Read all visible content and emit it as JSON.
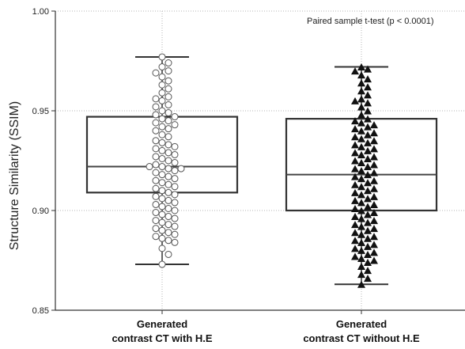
{
  "chart_data": {
    "type": "box",
    "annotation": "Paired sample t-test (p < 0.0001)",
    "ylabel": "Structure Similarity (SSIM)",
    "ylim": [
      0.85,
      1.0
    ],
    "yticks": [
      "0.85",
      "0.90",
      "0.95",
      "1.00"
    ],
    "grid": true,
    "categories": [
      {
        "line1": "Generated",
        "line2": "contrast CT with H.E"
      },
      {
        "line1": "Generated",
        "line2": "contrast CT without H.E"
      }
    ],
    "series": [
      {
        "marker": "circle",
        "whisker_low": 0.873,
        "q1": 0.909,
        "median": 0.922,
        "q3": 0.947,
        "whisker_high": 0.977,
        "points": [
          0.977,
          0.974,
          0.972,
          0.97,
          0.969,
          0.967,
          0.965,
          0.963,
          0.961,
          0.959,
          0.957,
          0.956,
          0.955,
          0.953,
          0.952,
          0.95,
          0.949,
          0.948,
          0.947,
          0.946,
          0.945,
          0.944,
          0.943,
          0.942,
          0.941,
          0.94,
          0.938,
          0.937,
          0.935,
          0.934,
          0.933,
          0.932,
          0.931,
          0.93,
          0.929,
          0.928,
          0.927,
          0.926,
          0.925,
          0.924,
          0.923,
          0.922,
          0.922,
          0.921,
          0.921,
          0.92,
          0.919,
          0.918,
          0.917,
          0.916,
          0.915,
          0.914,
          0.913,
          0.912,
          0.911,
          0.91,
          0.909,
          0.908,
          0.907,
          0.906,
          0.905,
          0.904,
          0.903,
          0.902,
          0.901,
          0.9,
          0.899,
          0.898,
          0.897,
          0.896,
          0.895,
          0.894,
          0.893,
          0.892,
          0.891,
          0.89,
          0.889,
          0.888,
          0.887,
          0.886,
          0.885,
          0.884,
          0.881,
          0.878,
          0.873
        ]
      },
      {
        "marker": "triangle",
        "whisker_low": 0.863,
        "q1": 0.9,
        "median": 0.918,
        "q3": 0.946,
        "whisker_high": 0.972,
        "points": [
          0.972,
          0.971,
          0.97,
          0.968,
          0.966,
          0.964,
          0.962,
          0.96,
          0.958,
          0.956,
          0.955,
          0.954,
          0.952,
          0.95,
          0.948,
          0.946,
          0.945,
          0.944,
          0.943,
          0.942,
          0.941,
          0.94,
          0.939,
          0.938,
          0.937,
          0.936,
          0.935,
          0.934,
          0.933,
          0.932,
          0.931,
          0.93,
          0.929,
          0.928,
          0.927,
          0.926,
          0.925,
          0.924,
          0.923,
          0.922,
          0.921,
          0.92,
          0.919,
          0.918,
          0.917,
          0.916,
          0.915,
          0.914,
          0.913,
          0.912,
          0.911,
          0.91,
          0.909,
          0.908,
          0.907,
          0.906,
          0.905,
          0.904,
          0.903,
          0.902,
          0.901,
          0.9,
          0.899,
          0.898,
          0.897,
          0.896,
          0.895,
          0.894,
          0.893,
          0.892,
          0.891,
          0.89,
          0.889,
          0.888,
          0.887,
          0.886,
          0.885,
          0.884,
          0.883,
          0.882,
          0.881,
          0.88,
          0.879,
          0.878,
          0.877,
          0.876,
          0.875,
          0.874,
          0.872,
          0.87,
          0.868,
          0.866,
          0.863
        ]
      }
    ]
  }
}
